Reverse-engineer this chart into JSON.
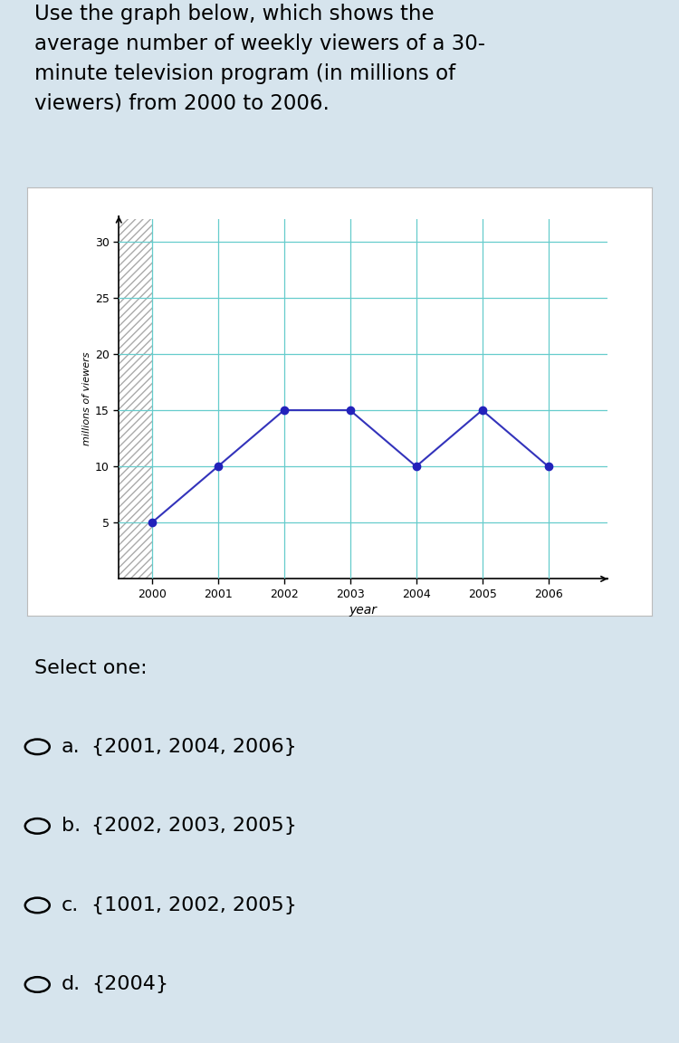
{
  "title_text": "Use the graph below, which shows the\naverage number of weekly viewers of a 30-\nminute television program (in millions of\nviewers) from 2000 to 2006.",
  "years": [
    2000,
    2001,
    2002,
    2003,
    2004,
    2005,
    2006
  ],
  "values": [
    5,
    10,
    15,
    15,
    10,
    15,
    10
  ],
  "xlabel": "year",
  "ylabel": "millions of viewers",
  "yticks": [
    5,
    10,
    15,
    20,
    25,
    30
  ],
  "ylim_bottom": 0,
  "ylim_top": 32,
  "xlim_left": 1999.5,
  "xlim_right": 2006.9,
  "line_color": "#3333bb",
  "marker_color": "#2222bb",
  "grid_color": "#66cccc",
  "outer_bg": "#d6e4ed",
  "chart_bg": "#ffffff",
  "chart_border": "#bbbbbb",
  "select_one_text": "Select one:",
  "options": [
    {
      "label": "a.",
      "text": "{2001, 2004, 2006}"
    },
    {
      "label": "b.",
      "text": "{2002, 2003, 2005}"
    },
    {
      "label": "c.",
      "text": "{1001, 2002, 2005}"
    },
    {
      "label": "d.",
      "text": "{2004}"
    }
  ]
}
